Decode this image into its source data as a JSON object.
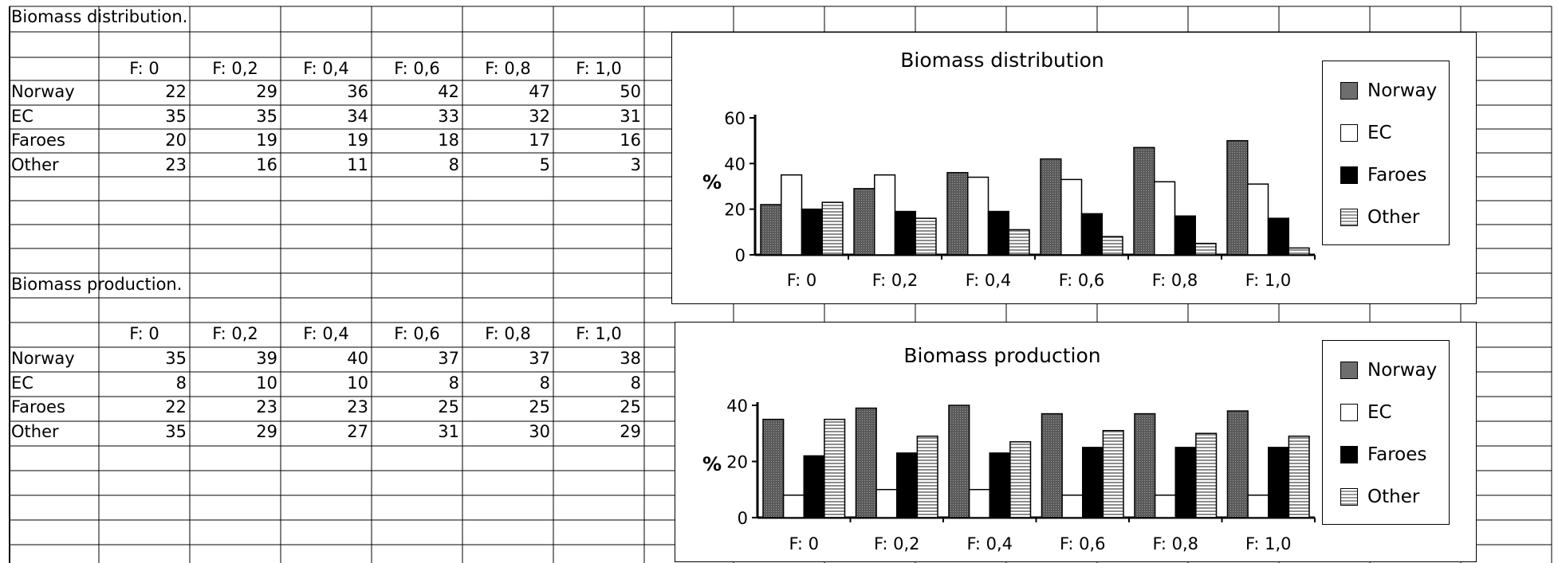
{
  "table1": {
    "title": "Biomass  distribution.",
    "headers": [
      "F:  0",
      "F:  0,2",
      "F:  0,4",
      "F:  0,6",
      "F:  0,8",
      "F:  1,0"
    ],
    "rows": [
      {
        "label": "Norway",
        "values": [
          "22",
          "29",
          "36",
          "42",
          "47",
          "50"
        ]
      },
      {
        "label": "EC",
        "values": [
          "35",
          "35",
          "34",
          "33",
          "32",
          "31"
        ]
      },
      {
        "label": "Faroes",
        "values": [
          "20",
          "19",
          "19",
          "18",
          "17",
          "16"
        ]
      },
      {
        "label": "Other",
        "values": [
          "23",
          "16",
          "11",
          "8",
          "5",
          "3"
        ]
      }
    ]
  },
  "table2": {
    "title": "Biomass  production.",
    "headers": [
      "F:  0",
      "F:  0,2",
      "F:  0,4",
      "F:  0,6",
      "F:  0,8",
      "F:  1,0"
    ],
    "rows": [
      {
        "label": "Norway",
        "values": [
          "35",
          "39",
          "40",
          "37",
          "37",
          "38"
        ]
      },
      {
        "label": "EC",
        "values": [
          "8",
          "10",
          "10",
          "8",
          "8",
          "8"
        ]
      },
      {
        "label": "Faroes",
        "values": [
          "22",
          "23",
          "23",
          "25",
          "25",
          "25"
        ]
      },
      {
        "label": "Other",
        "values": [
          "35",
          "29",
          "27",
          "31",
          "30",
          "29"
        ]
      }
    ]
  },
  "legend": [
    "Norway",
    "EC",
    "Faroes",
    "Other"
  ],
  "colors": {
    "Norway": "#6e6e6e",
    "EC": "#ffffff",
    "Faroes": "#000000",
    "Other": "#b8b8b8",
    "grid": "#000000"
  },
  "chart_data": [
    {
      "type": "bar",
      "title": "Biomass  distribution",
      "ylabel": "%",
      "xlabel": "",
      "ylim": [
        0,
        60
      ],
      "yticks": [
        "0",
        "20",
        "40",
        "60"
      ],
      "categories": [
        "F:  0",
        "F:  0,2",
        "F:  0,4",
        "F:  0,6",
        "F:  0,8",
        "F:  1,0"
      ],
      "series": [
        {
          "name": "Norway",
          "values": [
            22,
            29,
            36,
            42,
            47,
            50
          ]
        },
        {
          "name": "EC",
          "values": [
            35,
            35,
            34,
            33,
            32,
            31
          ]
        },
        {
          "name": "Faroes",
          "values": [
            20,
            19,
            19,
            18,
            17,
            16
          ]
        },
        {
          "name": "Other",
          "values": [
            23,
            16,
            11,
            8,
            5,
            3
          ]
        }
      ],
      "legend_position": "right",
      "grid": false
    },
    {
      "type": "bar",
      "title": "Biomass  production",
      "ylabel": "%",
      "xlabel": "",
      "ylim": [
        0,
        40
      ],
      "yticks": [
        "0",
        "20",
        "40"
      ],
      "categories": [
        "F:  0",
        "F:  0,2",
        "F:  0,4",
        "F:  0,6",
        "F:  0,8",
        "F:  1,0"
      ],
      "series": [
        {
          "name": "Norway",
          "values": [
            35,
            39,
            40,
            37,
            37,
            38
          ]
        },
        {
          "name": "EC",
          "values": [
            8,
            10,
            10,
            8,
            8,
            8
          ]
        },
        {
          "name": "Faroes",
          "values": [
            22,
            23,
            23,
            25,
            25,
            25
          ]
        },
        {
          "name": "Other",
          "values": [
            35,
            29,
            27,
            31,
            30,
            29
          ]
        }
      ],
      "legend_position": "right",
      "grid": false
    }
  ]
}
